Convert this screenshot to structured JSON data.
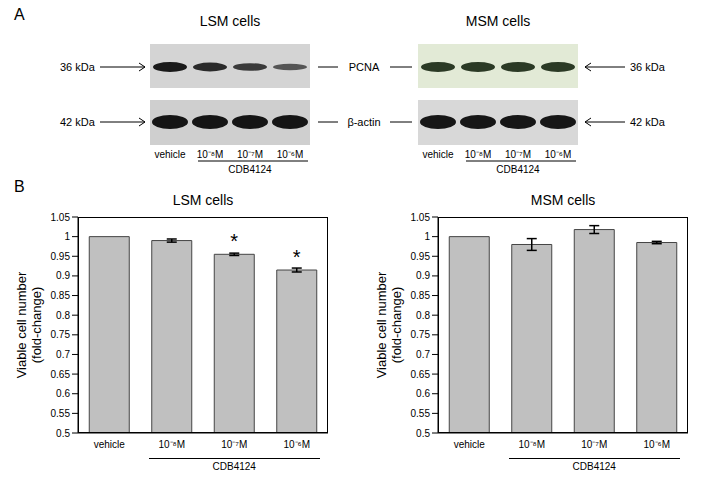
{
  "panel_a": {
    "label": "A",
    "blots": [
      {
        "title": "LSM cells",
        "lanes": [
          "vehicle",
          "10⁻⁸M",
          "10⁻⁷M",
          "10⁻⁶M"
        ],
        "treatment": "CDB4124"
      },
      {
        "title": "MSM cells",
        "lanes": [
          "vehicle",
          "10⁻⁸M",
          "10⁻⁷M",
          "10⁻⁶M"
        ],
        "treatment": "CDB4124"
      }
    ],
    "markers": [
      {
        "size": "36 kDa",
        "protein": "PCNA"
      },
      {
        "size": "42 kDa",
        "protein": "β-actin"
      }
    ]
  },
  "panel_b_label": "B",
  "chart_data": [
    {
      "type": "bar",
      "title": "LSM cells",
      "ylabel": "Viable cell number (fold-change)",
      "categories": [
        "vehicle",
        "10⁻⁸M",
        "10⁻⁷M",
        "10⁻⁶M"
      ],
      "group_label": "CDB4124",
      "values": [
        1.0,
        0.99,
        0.955,
        0.915
      ],
      "errors": [
        0,
        0.004,
        0.003,
        0.005
      ],
      "annotations": [
        {
          "category": "10⁻⁷M",
          "text": "*"
        },
        {
          "category": "10⁻⁶M",
          "text": "*"
        }
      ],
      "color": "#c0c0c0",
      "ylim": [
        0.5,
        1.05
      ],
      "yticks": [
        0.5,
        0.55,
        0.6,
        0.65,
        0.7,
        0.75,
        0.8,
        0.85,
        0.9,
        0.95,
        1,
        1.05
      ],
      "grid": false
    },
    {
      "type": "bar",
      "title": "MSM cells",
      "ylabel": "Viable cell number (fold-change)",
      "categories": [
        "vehicle",
        "10⁻⁸M",
        "10⁻⁷M",
        "10⁻⁶M"
      ],
      "group_label": "CDB4124",
      "values": [
        1.0,
        0.98,
        1.018,
        0.985
      ],
      "errors": [
        0,
        0.015,
        0.01,
        0.003
      ],
      "color": "#c0c0c0",
      "ylim": [
        0.5,
        1.05
      ],
      "yticks": [
        0.5,
        0.55,
        0.6,
        0.65,
        0.7,
        0.75,
        0.8,
        0.85,
        0.9,
        0.95,
        1,
        1.05
      ],
      "grid": false
    }
  ]
}
